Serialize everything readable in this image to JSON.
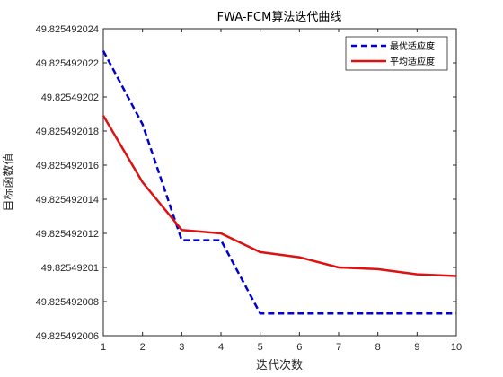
{
  "chart_data": {
    "type": "line",
    "title": "FWA-FCM算法迭代曲线",
    "xlabel": "迭代次数",
    "ylabel": "目标函数值",
    "x": [
      1,
      2,
      3,
      4,
      5,
      6,
      7,
      8,
      9,
      10
    ],
    "xlim": [
      1,
      10
    ],
    "ylim": [
      49.825492006,
      49.825492024
    ],
    "x_ticks": [
      "1",
      "2",
      "3",
      "4",
      "5",
      "6",
      "7",
      "8",
      "9",
      "10"
    ],
    "y_ticks": [
      {
        "value": 49.825492006,
        "label": "49.825492006"
      },
      {
        "value": 49.825492008,
        "label": "49.825492008"
      },
      {
        "value": 49.82549201,
        "label": "49.82549201"
      },
      {
        "value": 49.825492012,
        "label": "49.825492012"
      },
      {
        "value": 49.825492014,
        "label": "49.825492014"
      },
      {
        "value": 49.825492016,
        "label": "49.825492016"
      },
      {
        "value": 49.825492018,
        "label": "49.825492018"
      },
      {
        "value": 49.82549202,
        "label": "49.82549202"
      },
      {
        "value": 49.825492022,
        "label": "49.825492022"
      },
      {
        "value": 49.825492024,
        "label": "49.825492024"
      }
    ],
    "grid": false,
    "legend_position": "top-right",
    "series": [
      {
        "name": "最优适应度",
        "color": "#0000cc",
        "style": "dashed",
        "values": [
          49.8254920227,
          49.8254920184,
          49.8254920116,
          49.8254920116,
          49.8254920073,
          49.8254920073,
          49.8254920073,
          49.8254920073,
          49.8254920073,
          49.8254920073
        ]
      },
      {
        "name": "平均适应度",
        "color": "#dd1111",
        "style": "solid",
        "values": [
          49.8254920189,
          49.825492015,
          49.8254920122,
          49.825492012,
          49.8254920109,
          49.8254920106,
          49.82549201,
          49.8254920099,
          49.8254920096,
          49.8254920095
        ]
      }
    ]
  }
}
